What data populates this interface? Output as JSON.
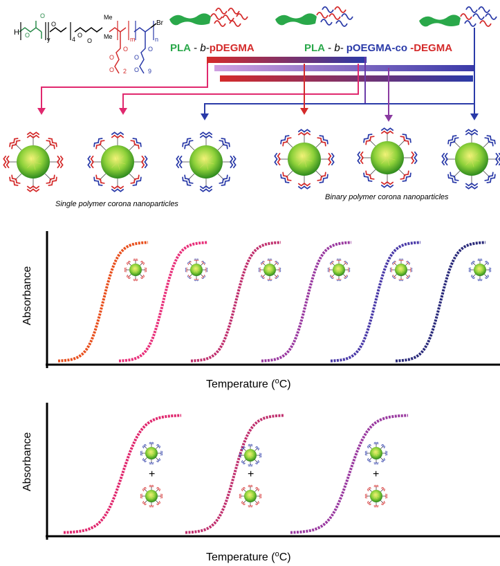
{
  "scheme": {
    "chem_labels": {
      "h": "H",
      "y": "y",
      "four": "4",
      "me1": "Me",
      "me2": "Me",
      "m": "m",
      "n": "n",
      "br": "Br",
      "two": "2",
      "nine": "9"
    },
    "polymer1": {
      "a": "PLA",
      "sep": " - ",
      "b": "b-",
      "c": "pDEGMA"
    },
    "polymer2": {
      "a": "PLA",
      "sep": " - ",
      "b": "b-",
      "c": "pOEGMA-co",
      "d": " -DEGMA"
    },
    "caption_single": "Single polymer corona nanoparticles",
    "caption_binary": "Binary polymer corona nanoparticles"
  },
  "plot_top": {
    "ylabel": "Absorbance",
    "xlabel_main": "Temperature (",
    "xlabel_sup": "o",
    "xlabel_end": "C)",
    "curve_colors": [
      "#e8501e",
      "#e8307a",
      "#c0306e",
      "#9a3aa0",
      "#4a3aa8",
      "#2a2a7a"
    ]
  },
  "plot_bottom": {
    "ylabel": "Absorbance",
    "xlabel_main": "Temperature (",
    "xlabel_sup": "o",
    "xlabel_end": "C)",
    "plus": [
      "+",
      "+",
      "+"
    ],
    "curve_colors": [
      "#e0286e",
      "#c0306e",
      "#9a3aa0"
    ]
  },
  "colors": {
    "pla_green": "#2aa84a",
    "pdegma_red": "#d42a2a",
    "poegma_blue": "#2a3aa8",
    "magenta": "#e0286e",
    "purple": "#8a3aa0"
  }
}
